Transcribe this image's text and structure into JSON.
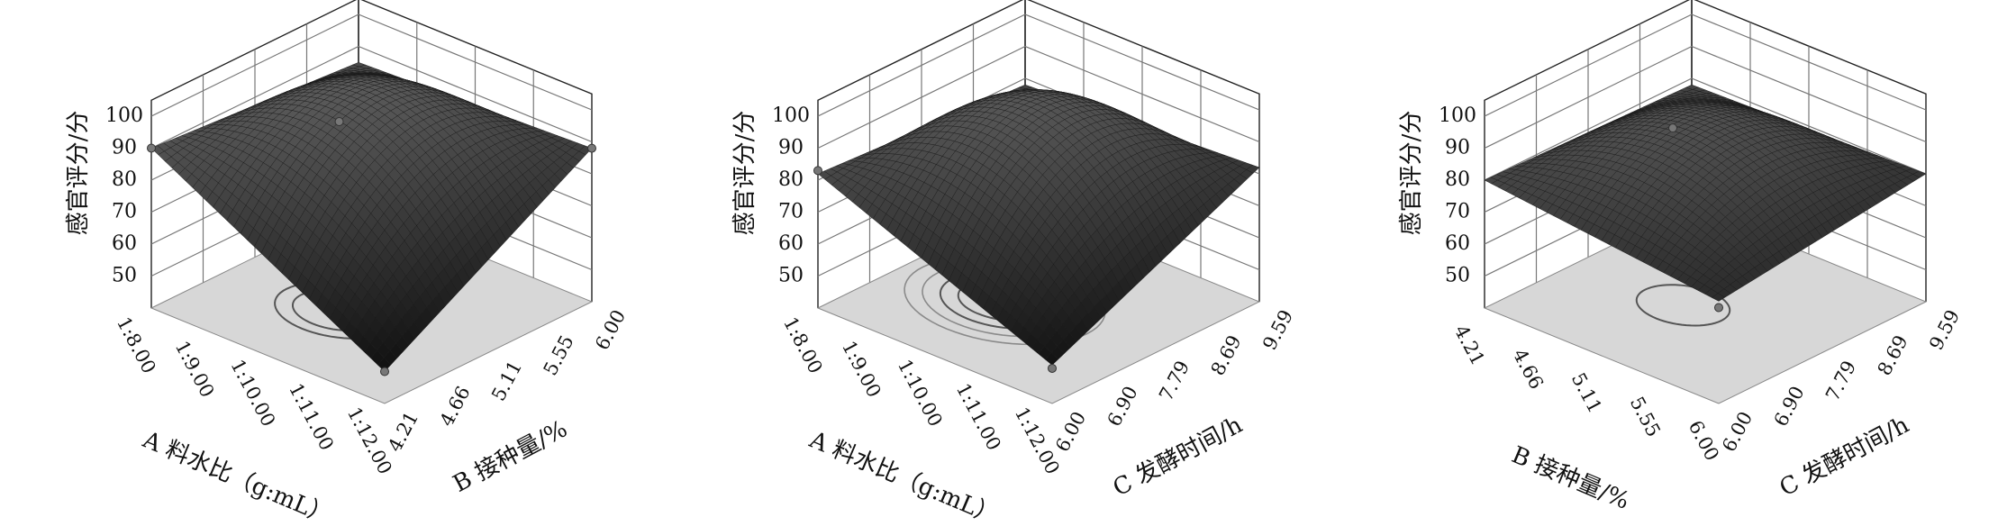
{
  "chart_data": [
    {
      "type": "surface3d",
      "zlabel": "感官评分/分",
      "xlabel": "A 料水比（g:mL）",
      "ylabel": "B 接种量/%",
      "x_ticks": [
        "1:8.00",
        "1:9.00",
        "1:10.00",
        "1:11.00",
        "1:12.00"
      ],
      "y_ticks": [
        "4.21",
        "4.66",
        "5.11",
        "5.55",
        "6.00"
      ],
      "z_ticks": [
        50,
        60,
        70,
        80,
        90,
        100
      ],
      "zlim": [
        40,
        100
      ],
      "corners": {
        "x0y0": 90,
        "x1y0": 50,
        "x0y1": 85,
        "x1y1": 88
      },
      "peak": {
        "x": 0.45,
        "y": 0.4,
        "z": 98
      },
      "contours": 2,
      "design_points": [
        {
          "x": 0,
          "y": 0,
          "z": 90
        },
        {
          "x": 1,
          "y": 0,
          "z": 50
        },
        {
          "x": 1,
          "y": 1,
          "z": 88
        },
        {
          "x": 0.45,
          "y": 0.4,
          "z": 99
        }
      ]
    },
    {
      "type": "surface3d",
      "zlabel": "感官评分/分",
      "xlabel": "A 料水比（g:mL）",
      "ylabel": "C 发酵时间/h",
      "x_ticks": [
        "1:8.00",
        "1:9.00",
        "1:10.00",
        "1:11.00",
        "1:12.00"
      ],
      "y_ticks": [
        "6.00",
        "6.90",
        "7.79",
        "8.69",
        "9.59"
      ],
      "z_ticks": [
        50,
        60,
        70,
        80,
        90,
        100
      ],
      "zlim": [
        40,
        100
      ],
      "corners": {
        "x0y0": 82,
        "x1y0": 52,
        "x0y1": 78,
        "x1y1": 82
      },
      "peak": {
        "x": 0.4,
        "y": 0.45,
        "z": 98
      },
      "contours": 4,
      "design_points": [
        {
          "x": 0,
          "y": 0,
          "z": 83
        },
        {
          "x": 1,
          "y": 0,
          "z": 51
        }
      ]
    },
    {
      "type": "surface3d",
      "zlabel": "感官评分/分",
      "xlabel": "B 接种量/%",
      "ylabel": "C 发酵时间/h",
      "x_ticks": [
        "4.21",
        "4.66",
        "5.11",
        "5.55",
        "6.00"
      ],
      "y_ticks": [
        "6.00",
        "6.90",
        "7.79",
        "8.69",
        "9.59"
      ],
      "z_ticks": [
        50,
        60,
        70,
        80,
        90,
        100
      ],
      "zlim": [
        40,
        100
      ],
      "corners": {
        "x0y0": 80,
        "x1y0": 72,
        "x0y1": 78,
        "x1y1": 80
      },
      "peak": {
        "x": 0.45,
        "y": 0.45,
        "z": 94
      },
      "contours": 1,
      "design_points": [
        {
          "x": 0.45,
          "y": 0.4,
          "z": 97
        },
        {
          "x": 1,
          "y": 0,
          "z": 70
        }
      ]
    }
  ]
}
